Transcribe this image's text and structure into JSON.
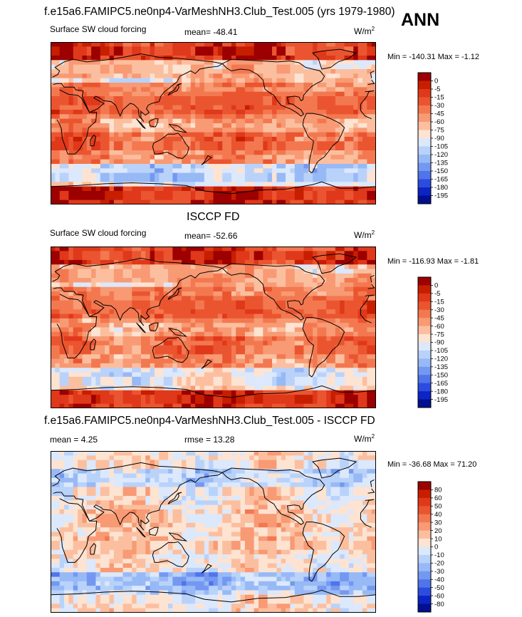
{
  "header": {
    "title": "f.e15a6.FAMIPC5.ne0np4-VarMeshNH3.Club_Test.005 (yrs 1979-1980)",
    "season": "ANN"
  },
  "colors": {
    "land_outline": "#000000",
    "frame": "#000000"
  },
  "panels": [
    {
      "variable": "Surface SW cloud forcing",
      "mean_label": "mean= -48.41",
      "units_base": "W/m",
      "units_exp": "2",
      "minmax": "Min = -140.31 Max =  -1.12"
    },
    {
      "section_title": "ISCCP FD",
      "variable": "Surface SW cloud forcing",
      "mean_label": "mean= -52.66",
      "units_base": "W/m",
      "units_exp": "2",
      "minmax": "Min = -116.93 Max =  -1.81"
    },
    {
      "section_title": "f.e15a6.FAMIPC5.ne0np4-VarMeshNH3.Club_Test.005 - ISCCP FD",
      "mean_label": "mean =   4.25",
      "rmse_label": "rmse =  13.28",
      "units_base": "W/m",
      "units_exp": "2",
      "minmax": "Min = -36.68 Max =  71.20"
    }
  ],
  "chart_data": [
    {
      "type": "heatmap",
      "title": "Surface SW cloud forcing",
      "mean": -48.41,
      "units": "W/m2",
      "min": -140.31,
      "max": -1.12,
      "colorbar_levels": [
        0,
        -5,
        -15,
        -30,
        -45,
        -60,
        -75,
        -90,
        -105,
        -120,
        -135,
        -150,
        -165,
        -180,
        -195
      ],
      "colorbar_labels": [
        "0",
        "-5",
        "-15",
        "-30",
        "-45",
        "-60",
        "-75",
        "-90",
        "-105",
        "-120",
        "-135",
        "-150",
        "-165",
        "-180",
        "-195"
      ],
      "colorbar_colors": [
        "#9c0000",
        "#c81e00",
        "#e0381a",
        "#ea5530",
        "#f37850",
        "#f89a74",
        "#fbbf9f",
        "#fde3d2",
        "#dce8fb",
        "#b9d2fa",
        "#97b9f6",
        "#7498f1",
        "#5074ea",
        "#2c4ce0",
        "#0c24c4",
        "#00108f"
      ]
    },
    {
      "type": "heatmap",
      "title": "ISCCP FD Surface SW cloud forcing",
      "mean": -52.66,
      "units": "W/m2",
      "min": -116.93,
      "max": -1.81,
      "colorbar_levels": [
        0,
        -5,
        -15,
        -30,
        -45,
        -60,
        -75,
        -90,
        -105,
        -120,
        -135,
        -150,
        -165,
        -180,
        -195
      ],
      "colorbar_labels": [
        "0",
        "-5",
        "-15",
        "-30",
        "-45",
        "-60",
        "-75",
        "-90",
        "-105",
        "-120",
        "-135",
        "-150",
        "-165",
        "-180",
        "-195"
      ],
      "colorbar_colors": [
        "#9c0000",
        "#c81e00",
        "#e0381a",
        "#ea5530",
        "#f37850",
        "#f89a74",
        "#fbbf9f",
        "#fde3d2",
        "#dce8fb",
        "#b9d2fa",
        "#97b9f6",
        "#7498f1",
        "#5074ea",
        "#2c4ce0",
        "#0c24c4",
        "#00108f"
      ]
    },
    {
      "type": "heatmap",
      "title": "Model - ISCCP FD difference",
      "mean": 4.25,
      "rmse": 13.28,
      "units": "W/m2",
      "min": -36.68,
      "max": 71.2,
      "colorbar_levels": [
        80,
        60,
        50,
        40,
        30,
        20,
        10,
        0,
        -10,
        -20,
        -30,
        -40,
        -50,
        -60,
        -80
      ],
      "colorbar_labels": [
        "80",
        "60",
        "50",
        "40",
        "30",
        "20",
        "10",
        "0",
        "-10",
        "-20",
        "-30",
        "-40",
        "-50",
        "-60",
        "-80"
      ],
      "colorbar_colors": [
        "#9c0000",
        "#c81e00",
        "#e0381a",
        "#ea5530",
        "#f37850",
        "#f89a74",
        "#fbbf9f",
        "#fde3d2",
        "#dce8fb",
        "#b9d2fa",
        "#97b9f6",
        "#7498f1",
        "#5074ea",
        "#2c4ce0",
        "#0c24c4",
        "#00108f"
      ]
    }
  ]
}
